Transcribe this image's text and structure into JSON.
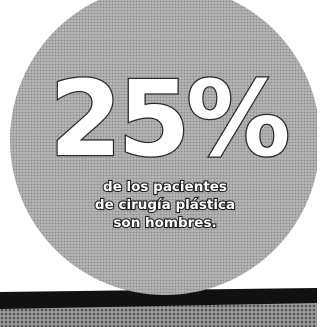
{
  "stat": {
    "value": "25%",
    "caption": [
      "de los pacientes",
      "de cirugía plástica",
      "son hombres."
    ]
  }
}
